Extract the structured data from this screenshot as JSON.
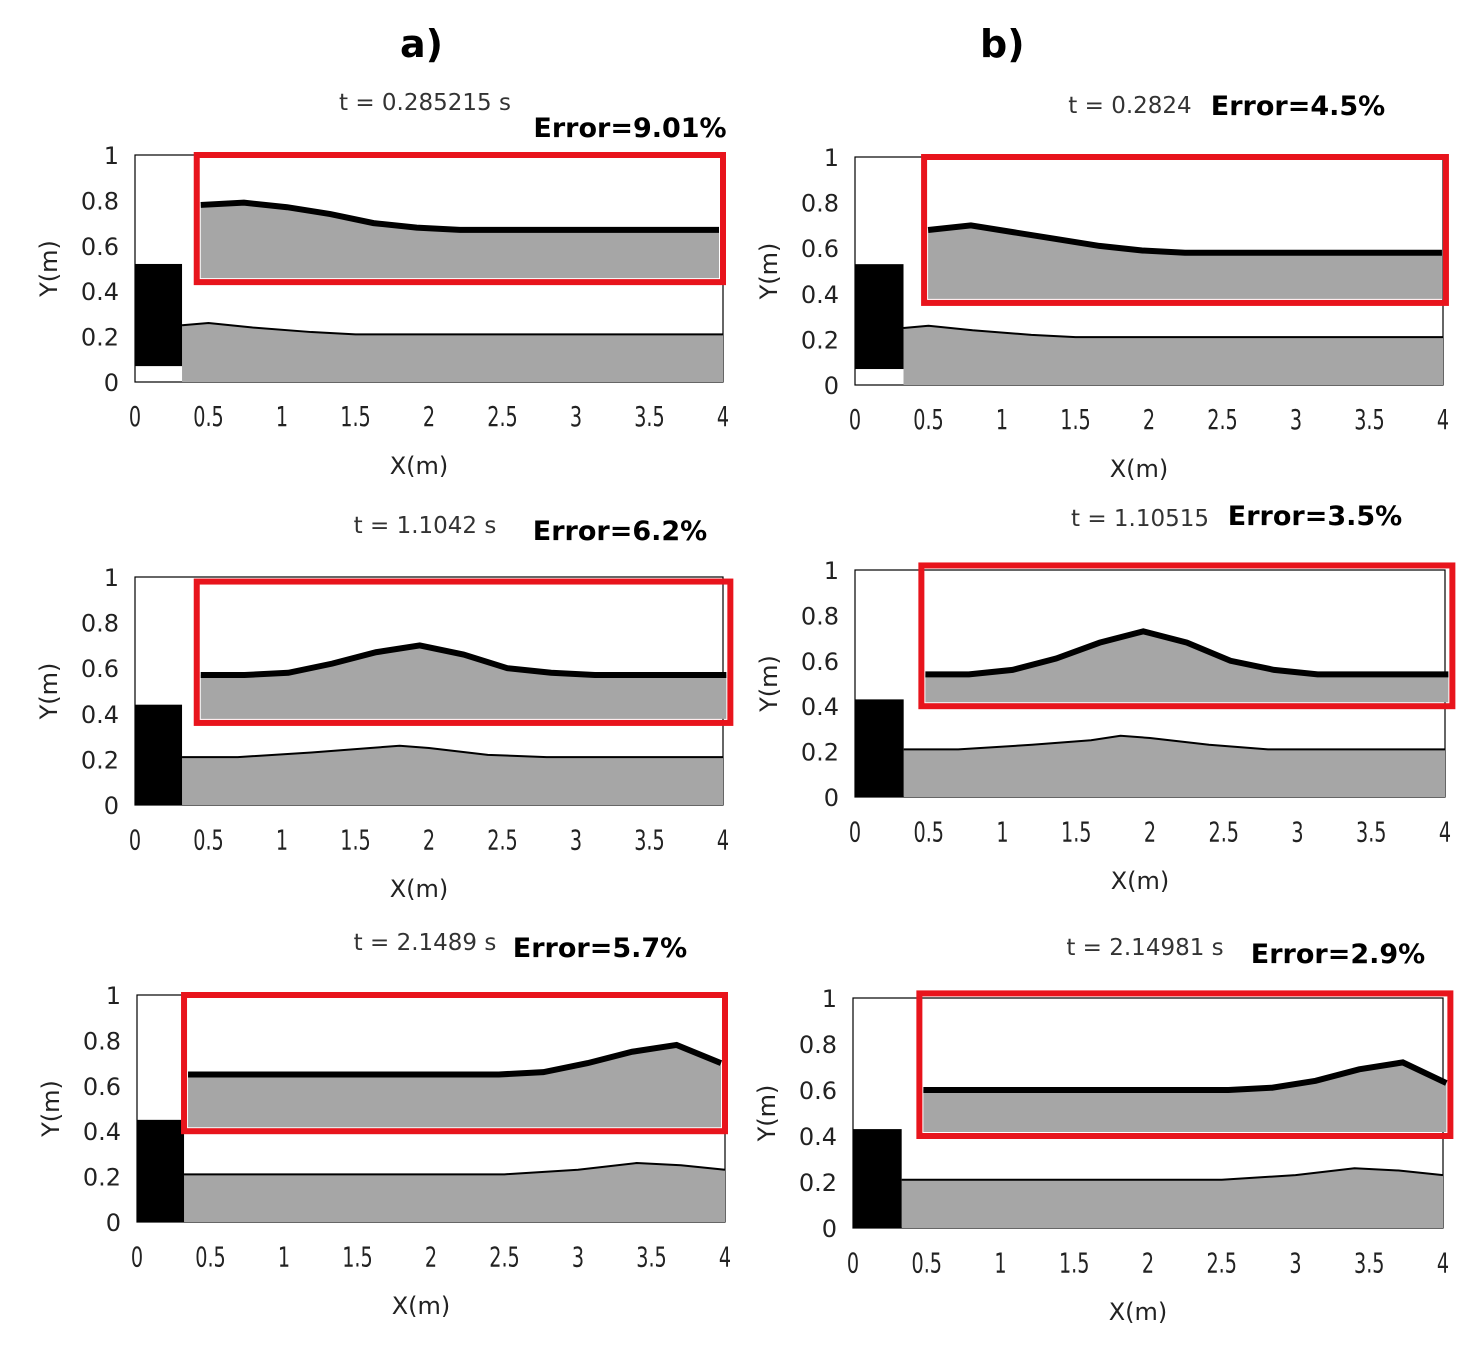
{
  "column_labels": [
    "a)",
    "b)"
  ],
  "chart_data": [
    {
      "type": "area",
      "time_label": "t = 0.285215 s",
      "error_label": "Error=9.01%",
      "xlabel": "X(m)",
      "ylabel": "Y(m)",
      "xlim": [
        0,
        4
      ],
      "ylim": [
        0,
        1
      ],
      "xticks": [
        "0",
        "0.5",
        "1",
        "1.5",
        "2",
        "2.5",
        "3",
        "3.5",
        "4"
      ],
      "yticks": [
        "0",
        "0.2",
        "0.4",
        "0.6",
        "0.8",
        "1"
      ],
      "block": {
        "x": [
          0,
          0.32
        ],
        "y": [
          0.07,
          0.52
        ]
      },
      "surface": {
        "x": [
          0.32,
          0.5,
          0.8,
          1.2,
          1.5,
          2.0,
          3.0,
          4.0
        ],
        "y": [
          0.25,
          0.26,
          0.24,
          0.22,
          0.21,
          0.21,
          0.21,
          0.21
        ]
      },
      "zoom_surface": [
        0.78,
        0.79,
        0.77,
        0.74,
        0.7,
        0.68,
        0.67,
        0.67,
        0.67,
        0.67,
        0.67,
        0.67,
        0.67
      ],
      "highlight": {
        "x": [
          0.42,
          4.0
        ],
        "y": [
          0.44,
          1.0
        ]
      }
    },
    {
      "type": "area",
      "time_label": "t = 1.1042 s",
      "error_label": "Error=6.2%",
      "xlabel": "X(m)",
      "ylabel": "Y(m)",
      "xlim": [
        0,
        4
      ],
      "ylim": [
        0,
        1
      ],
      "xticks": [
        "0",
        "0.5",
        "1",
        "1.5",
        "2",
        "2.5",
        "3",
        "3.5",
        "4"
      ],
      "yticks": [
        "0",
        "0.2",
        "0.4",
        "0.6",
        "0.8",
        "1"
      ],
      "block": {
        "x": [
          0,
          0.32
        ],
        "y": [
          0,
          0.44
        ]
      },
      "surface": {
        "x": [
          0.32,
          0.7,
          1.2,
          1.6,
          1.8,
          2.0,
          2.4,
          2.8,
          3.2,
          4.0
        ],
        "y": [
          0.21,
          0.21,
          0.23,
          0.25,
          0.26,
          0.25,
          0.22,
          0.21,
          0.21,
          0.21
        ]
      },
      "zoom_surface": [
        0.57,
        0.57,
        0.58,
        0.62,
        0.67,
        0.7,
        0.66,
        0.6,
        0.58,
        0.57,
        0.57,
        0.57,
        0.57
      ],
      "highlight": {
        "x": [
          0.42,
          4.05
        ],
        "y": [
          0.36,
          0.98
        ]
      }
    },
    {
      "type": "area",
      "time_label": "t = 2.1489 s",
      "error_label": "Error=5.7%",
      "xlabel": "X(m)",
      "ylabel": "Y(m)",
      "xlim": [
        0,
        4
      ],
      "ylim": [
        0,
        1
      ],
      "xticks": [
        "0",
        "0.5",
        "1",
        "1.5",
        "2",
        "2.5",
        "3",
        "3.5",
        "4"
      ],
      "yticks": [
        "0",
        "0.2",
        "0.4",
        "0.6",
        "0.8",
        "1"
      ],
      "block": {
        "x": [
          0,
          0.32
        ],
        "y": [
          0,
          0.45
        ]
      },
      "surface": {
        "x": [
          0.32,
          1.0,
          2.0,
          2.5,
          3.0,
          3.4,
          3.7,
          4.0
        ],
        "y": [
          0.21,
          0.21,
          0.21,
          0.21,
          0.23,
          0.26,
          0.25,
          0.23
        ]
      },
      "zoom_surface": [
        0.65,
        0.65,
        0.65,
        0.65,
        0.65,
        0.65,
        0.65,
        0.65,
        0.66,
        0.7,
        0.75,
        0.78,
        0.7
      ],
      "highlight": {
        "x": [
          0.32,
          4.0
        ],
        "y": [
          0.4,
          1.0
        ]
      }
    },
    {
      "type": "area",
      "time_label": "t = 0.2824",
      "error_label": "Error=4.5%",
      "xlabel": "X(m)",
      "ylabel": "Y(m)",
      "xlim": [
        0,
        4
      ],
      "ylim": [
        0,
        1
      ],
      "xticks": [
        "0",
        "0.5",
        "1",
        "1.5",
        "2",
        "2.5",
        "3",
        "3.5",
        "4"
      ],
      "yticks": [
        "0",
        "0.2",
        "0.4",
        "0.6",
        "0.8",
        "1"
      ],
      "block": {
        "x": [
          0,
          0.33
        ],
        "y": [
          0.07,
          0.53
        ]
      },
      "surface": {
        "x": [
          0.33,
          0.5,
          0.8,
          1.2,
          1.5,
          2.0,
          3.0,
          4.0
        ],
        "y": [
          0.25,
          0.26,
          0.24,
          0.22,
          0.21,
          0.21,
          0.21,
          0.21
        ]
      },
      "zoom_surface": [
        0.68,
        0.7,
        0.67,
        0.64,
        0.61,
        0.59,
        0.58,
        0.58,
        0.58,
        0.58,
        0.58,
        0.58,
        0.58
      ],
      "highlight": {
        "x": [
          0.47,
          4.02
        ],
        "y": [
          0.36,
          1.0
        ]
      }
    },
    {
      "type": "area",
      "time_label": "t = 1.10515",
      "error_label": "Error=3.5%",
      "xlabel": "X(m)",
      "ylabel": "Y(m)",
      "xlim": [
        0,
        4
      ],
      "ylim": [
        0,
        1
      ],
      "xticks": [
        "0",
        "0.5",
        "1",
        "1.5",
        "2",
        "2.5",
        "3",
        "3.5",
        "4"
      ],
      "yticks": [
        "0",
        "0.2",
        "0.4",
        "0.6",
        "0.8",
        "1"
      ],
      "block": {
        "x": [
          0,
          0.33
        ],
        "y": [
          0,
          0.43
        ]
      },
      "surface": {
        "x": [
          0.33,
          0.7,
          1.2,
          1.6,
          1.8,
          2.0,
          2.4,
          2.8,
          3.2,
          4.0
        ],
        "y": [
          0.21,
          0.21,
          0.23,
          0.25,
          0.27,
          0.26,
          0.23,
          0.21,
          0.21,
          0.21
        ]
      },
      "zoom_surface": [
        0.54,
        0.54,
        0.56,
        0.61,
        0.68,
        0.73,
        0.68,
        0.6,
        0.56,
        0.54,
        0.54,
        0.54,
        0.54
      ],
      "highlight": {
        "x": [
          0.45,
          4.05
        ],
        "y": [
          0.4,
          1.02
        ]
      }
    },
    {
      "type": "area",
      "time_label": "t = 2.14981 s",
      "error_label": "Error=2.9%",
      "xlabel": "X(m)",
      "ylabel": "Y(m)",
      "xlim": [
        0,
        4
      ],
      "ylim": [
        0,
        1
      ],
      "xticks": [
        "0",
        "0.5",
        "1",
        "1.5",
        "2",
        "2.5",
        "3",
        "3.5",
        "4"
      ],
      "yticks": [
        "0",
        "0.2",
        "0.4",
        "0.6",
        "0.8",
        "1"
      ],
      "block": {
        "x": [
          0,
          0.33
        ],
        "y": [
          0,
          0.43
        ]
      },
      "surface": {
        "x": [
          0.33,
          1.0,
          2.0,
          2.5,
          3.0,
          3.4,
          3.7,
          4.0
        ],
        "y": [
          0.21,
          0.21,
          0.21,
          0.21,
          0.23,
          0.26,
          0.25,
          0.23
        ]
      },
      "zoom_surface": [
        0.6,
        0.6,
        0.6,
        0.6,
        0.6,
        0.6,
        0.6,
        0.6,
        0.61,
        0.64,
        0.69,
        0.72,
        0.63
      ],
      "highlight": {
        "x": [
          0.45,
          4.05
        ],
        "y": [
          0.4,
          1.02
        ]
      }
    }
  ]
}
